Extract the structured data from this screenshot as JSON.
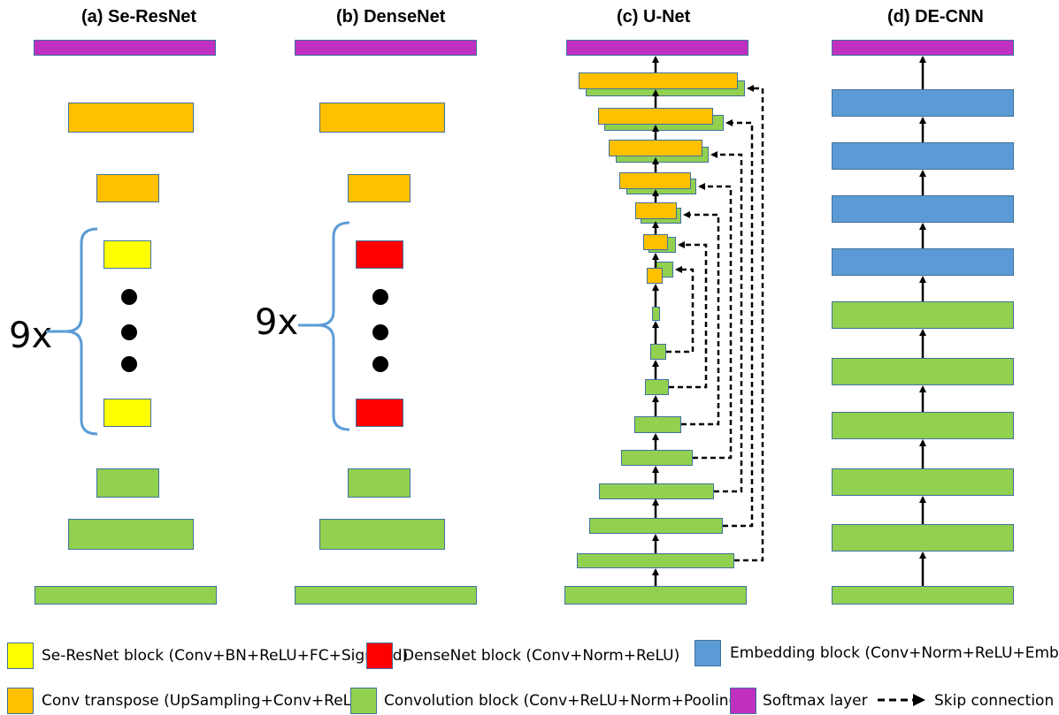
{
  "panels": {
    "a": {
      "title": "(a) Se-ResNet",
      "multiplier": "9x"
    },
    "b": {
      "title": "(b) DenseNet",
      "multiplier": "9x"
    },
    "c": {
      "title": "(c) U-Net"
    },
    "d": {
      "title": "(d) DE-CNN"
    }
  },
  "legend": [
    {
      "color": "#ffff00",
      "label": "Se-ResNet block (Conv+BN+ReLU+FC+Sigmoid)",
      "icon": "yellow-swatch"
    },
    {
      "color": "#ff0000",
      "label": "DenseNet block (Conv+Norm+ReLU)",
      "icon": "red-swatch"
    },
    {
      "color": "#5b9bd5",
      "label": "Embedding block (Conv+Norm+ReLU+Embed)",
      "icon": "blue-swatch"
    },
    {
      "color": "#ffc000",
      "label": "Conv transpose (UpSampling+Conv+ReLU)",
      "icon": "orange-swatch"
    },
    {
      "color": "#92d050",
      "label": "Convolution block (Conv+ReLU+Norm+Pooling)",
      "icon": "green-swatch"
    },
    {
      "color": "#c030c0",
      "label": "Softmax layer",
      "icon": "magenta-swatch"
    },
    {
      "label": "Skip connection",
      "icon": "dashed-arrow-icon"
    }
  ]
}
